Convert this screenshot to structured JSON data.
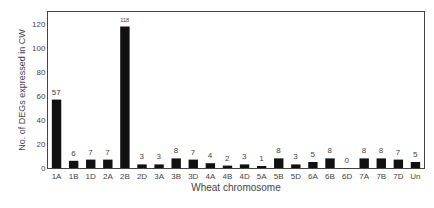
{
  "chart_data": {
    "type": "bar",
    "categories": [
      "1A",
      "1B",
      "1D",
      "2A",
      "2B",
      "2D",
      "3A",
      "3B",
      "3D",
      "4A",
      "4B",
      "4D",
      "5A",
      "5B",
      "5D",
      "6A",
      "6B",
      "6D",
      "7A",
      "7B",
      "7D",
      "Un"
    ],
    "values": [
      57,
      6,
      7,
      7,
      118,
      3,
      3,
      8,
      7,
      4,
      2,
      3,
      1,
      8,
      3,
      5,
      8,
      0,
      8,
      8,
      7,
      5
    ],
    "color": "#111111",
    "xlabel": "Wheat chromosome",
    "ylabel": "No. of DEGs expressed in CW",
    "ylim": [
      0,
      130
    ],
    "yticks": [
      0,
      20,
      40,
      60,
      80,
      100,
      120
    ],
    "data_labels": true,
    "grid": false
  }
}
